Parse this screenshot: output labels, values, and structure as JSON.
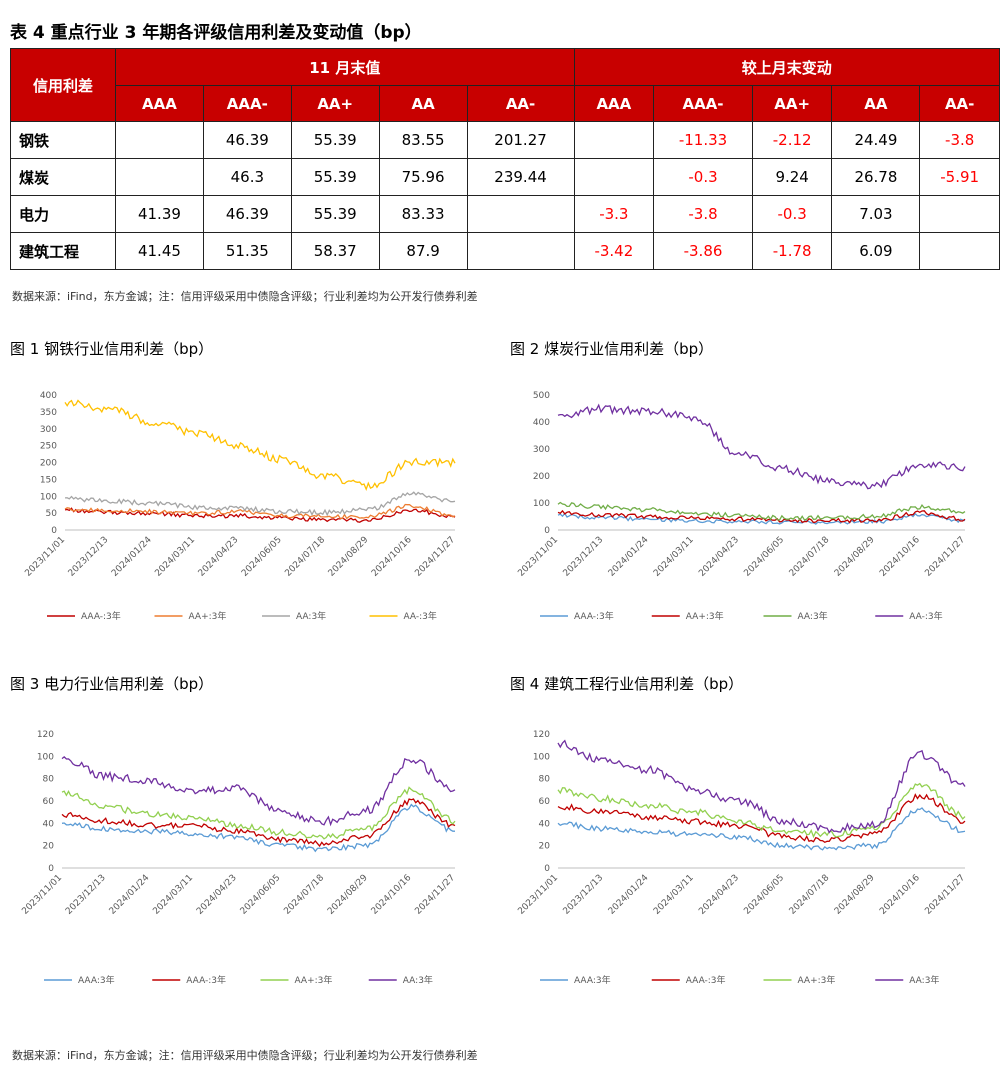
{
  "table": {
    "title": "表 4   重点行业 3 年期各评级信用利差及变动值（bp）",
    "corner": "信用利差",
    "group1": "11 月末值",
    "group2": "较上月末变动",
    "ratings": [
      "AAA",
      "AAA-",
      "AA+",
      "AA",
      "AA-"
    ],
    "rows": [
      {
        "name": "钢铁",
        "values": [
          "",
          "46.39",
          "55.39",
          "83.55",
          "201.27"
        ],
        "changes": [
          "",
          "-11.33",
          "-2.12",
          "24.49",
          "-3.8"
        ]
      },
      {
        "name": "煤炭",
        "values": [
          "",
          "46.3",
          "55.39",
          "75.96",
          "239.44"
        ],
        "changes": [
          "",
          "-0.3",
          "9.24",
          "26.78",
          "-5.91"
        ]
      },
      {
        "name": "电力",
        "values": [
          "41.39",
          "46.39",
          "55.39",
          "83.33",
          ""
        ],
        "changes": [
          "-3.3",
          "-3.8",
          "-0.3",
          "7.03",
          ""
        ]
      },
      {
        "name": "建筑工程",
        "values": [
          "41.45",
          "51.35",
          "58.37",
          "87.9",
          ""
        ],
        "changes": [
          "-3.42",
          "-3.86",
          "-1.78",
          "6.09",
          ""
        ]
      }
    ]
  },
  "source_text": "数据来源：iFind，东方金诚；注：信用评级采用中债隐含评级；行业利差均为公开发行债券利差",
  "x_dates": [
    "2023/11/01",
    "2023/12/13",
    "2024/01/24",
    "2024/03/11",
    "2024/04/23",
    "2024/06/05",
    "2024/07/18",
    "2024/08/29",
    "2024/10/16",
    "2024/11/27"
  ],
  "chart_data": [
    {
      "type": "line",
      "title": "图 1  钢铁行业信用利差（bp）",
      "ylim": [
        0,
        400
      ],
      "yticks": [
        0,
        50,
        100,
        150,
        200,
        250,
        300,
        350,
        400
      ],
      "series": [
        {
          "name": "AAA-:3年",
          "color": "#c00000",
          "values": [
            60,
            52,
            50,
            42,
            42,
            35,
            30,
            28,
            60,
            38
          ]
        },
        {
          "name": "AA+:3年",
          "color": "#ed7d31",
          "values": [
            62,
            58,
            55,
            50,
            55,
            42,
            40,
            40,
            72,
            42
          ]
        },
        {
          "name": "AA:3年",
          "color": "#a5a5a5",
          "values": [
            95,
            85,
            80,
            68,
            65,
            55,
            52,
            60,
            110,
            85
          ]
        },
        {
          "name": "AA-:3年",
          "color": "#ffc000",
          "values": [
            378,
            360,
            322,
            290,
            250,
            210,
            160,
            128,
            200,
            198
          ]
        }
      ]
    },
    {
      "type": "line",
      "title": "图 2  煤炭行业信用利差（bp）",
      "ylim": [
        0,
        500
      ],
      "yticks": [
        0,
        100,
        200,
        300,
        400,
        500
      ],
      "series": [
        {
          "name": "AAA-:3年",
          "color": "#5b9bd5",
          "values": [
            55,
            45,
            40,
            35,
            32,
            28,
            28,
            30,
            55,
            35
          ]
        },
        {
          "name": "AA+:3年",
          "color": "#c00000",
          "values": [
            65,
            55,
            50,
            45,
            40,
            35,
            35,
            35,
            65,
            40
          ]
        },
        {
          "name": "AA:3年",
          "color": "#70ad47",
          "values": [
            95,
            85,
            75,
            60,
            55,
            45,
            45,
            50,
            85,
            68
          ]
        },
        {
          "name": "AA-:3年",
          "color": "#7030a0",
          "values": [
            425,
            448,
            440,
            420,
            280,
            225,
            180,
            162,
            240,
            235
          ]
        }
      ]
    },
    {
      "type": "line",
      "title": "图 3  电力行业信用利差（bp）",
      "ylim": [
        0,
        120
      ],
      "yticks": [
        0,
        20,
        40,
        60,
        80,
        100,
        120
      ],
      "series": [
        {
          "name": "AAA:3年",
          "color": "#5b9bd5",
          "values": [
            40,
            35,
            33,
            30,
            28,
            20,
            17,
            20,
            55,
            33
          ]
        },
        {
          "name": "AAA-:3年",
          "color": "#c00000",
          "values": [
            48,
            42,
            38,
            38,
            33,
            25,
            22,
            28,
            60,
            38
          ]
        },
        {
          "name": "AA+:3年",
          "color": "#92d050",
          "values": [
            68,
            55,
            48,
            45,
            38,
            32,
            28,
            35,
            70,
            42
          ]
        },
        {
          "name": "AA:3年",
          "color": "#7030a0",
          "values": [
            98,
            82,
            78,
            68,
            72,
            50,
            42,
            52,
            97,
            70
          ]
        }
      ]
    },
    {
      "type": "line",
      "title": "图 4  建筑工程行业信用利差（bp）",
      "ylim": [
        0,
        120
      ],
      "yticks": [
        0,
        20,
        40,
        60,
        80,
        100,
        120
      ],
      "series": [
        {
          "name": "AAA:3年",
          "color": "#5b9bd5",
          "values": [
            40,
            35,
            32,
            30,
            28,
            20,
            18,
            20,
            52,
            33
          ]
        },
        {
          "name": "AAA-:3年",
          "color": "#c00000",
          "values": [
            55,
            50,
            45,
            42,
            38,
            28,
            25,
            30,
            65,
            42
          ]
        },
        {
          "name": "AA+:3年",
          "color": "#92d050",
          "values": [
            70,
            62,
            56,
            50,
            42,
            32,
            30,
            35,
            75,
            46
          ]
        },
        {
          "name": "AA:3年",
          "color": "#7030a0",
          "values": [
            112,
            95,
            88,
            70,
            60,
            42,
            35,
            38,
            102,
            73
          ]
        }
      ]
    }
  ]
}
